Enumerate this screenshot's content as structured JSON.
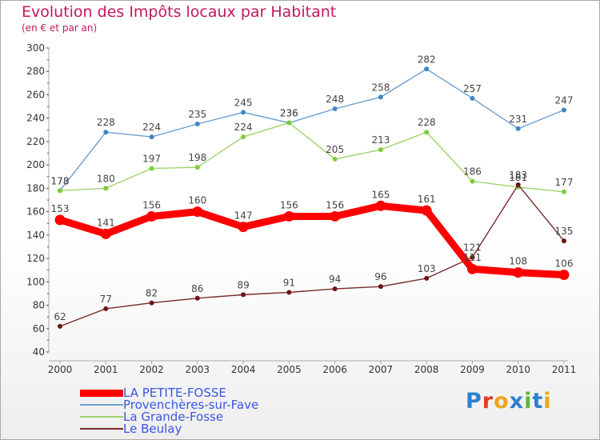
{
  "title": "Evolution des Impôts locaux par Habitant",
  "subtitle": "(en € et par an)",
  "logo": "Proxiti",
  "colors": {
    "title": "#c2185b",
    "legend_text": "#3a56e0",
    "logo": [
      "#2e7fd0",
      "#e03c1a",
      "#f2a21b",
      "#2e7fd0",
      "#5fb830",
      "#2e7fd0",
      "#f2a21b"
    ]
  },
  "chart_data": {
    "type": "line",
    "title": "Evolution des Impôts locaux par Habitant",
    "subtitle": "(en € et par an)",
    "xlabel": "",
    "ylabel": "",
    "ylim": [
      40,
      300
    ],
    "yticks": [
      40,
      60,
      80,
      100,
      120,
      140,
      160,
      180,
      200,
      220,
      240,
      260,
      280,
      300
    ],
    "grid": false,
    "legend_position": "bottom-left",
    "x": [
      "2000",
      "2001",
      "2002",
      "2003",
      "2004",
      "2005",
      "2006",
      "2007",
      "2008",
      "2009",
      "2010",
      "2011"
    ],
    "series": [
      {
        "name": "LA PETITE-FOSSE",
        "color": "#ff0000",
        "marker_color": "#ff0000",
        "emphasis": true,
        "values": [
          153,
          141,
          156,
          160,
          147,
          156,
          156,
          165,
          161,
          111,
          108,
          106
        ]
      },
      {
        "name": "Provenchères-sur-Fave",
        "color": "#6f9fd0",
        "marker_color": "#3d86c6",
        "emphasis": false,
        "values": [
          178,
          228,
          224,
          235,
          245,
          236,
          248,
          258,
          282,
          257,
          231,
          247
        ]
      },
      {
        "name": "La Grande-Fosse",
        "color": "#9ed46a",
        "marker_color": "#7ccc3a",
        "emphasis": false,
        "values": [
          178,
          180,
          197,
          198,
          224,
          236,
          205,
          213,
          228,
          186,
          181,
          177
        ]
      },
      {
        "name": "Le Beulay",
        "color": "#7a2a2a",
        "marker_color": "#6e1414",
        "emphasis": false,
        "values": [
          62,
          77,
          82,
          86,
          89,
          91,
          94,
          96,
          103,
          121,
          183,
          135
        ]
      }
    ]
  }
}
